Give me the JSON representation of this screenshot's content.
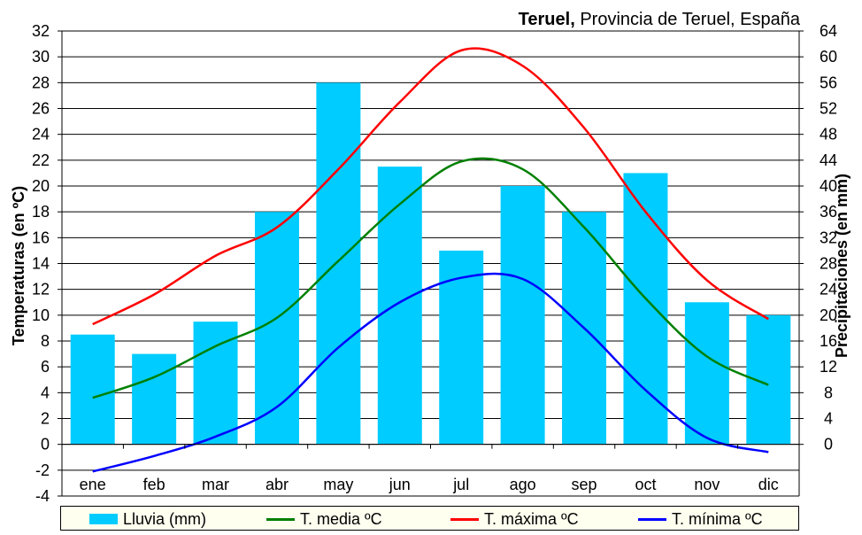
{
  "chart_data": {
    "type": "bar+line",
    "caption": {
      "place": "Teruel,",
      "rest": "Provincia de Teruel, España"
    },
    "categories": [
      "ene",
      "feb",
      "mar",
      "abr",
      "may",
      "jun",
      "jul",
      "ago",
      "sep",
      "oct",
      "nov",
      "dic"
    ],
    "ylabel_left": "Temperaturas (en ºC)",
    "ylabel_right": "Precipitaciones (en mm)",
    "ylim_left": [
      -4,
      32
    ],
    "ylim_right": [
      -8,
      64
    ],
    "yticks_left": [
      "32",
      "30",
      "28",
      "26",
      "24",
      "22",
      "20",
      "18",
      "16",
      "14",
      "12",
      "10",
      "8",
      "6",
      "4",
      "2",
      "0",
      "-2",
      "-4"
    ],
    "yticks_right": [
      "64",
      "60",
      "56",
      "52",
      "48",
      "44",
      "40",
      "36",
      "32",
      "28",
      "24",
      "20",
      "16",
      "12",
      "8",
      "4",
      "0"
    ],
    "grid": true,
    "legend_position": "bottom",
    "bars": {
      "name": "Lluvia (mm)",
      "color": "#00ccff",
      "values": [
        17,
        14,
        19,
        36,
        56,
        43,
        30,
        40,
        36,
        42,
        22,
        20
      ]
    },
    "series": [
      {
        "name": "T. media ºC",
        "color": "#008000",
        "values": [
          3.6,
          5.2,
          7.6,
          9.8,
          14.2,
          18.6,
          21.9,
          21.3,
          16.8,
          11.3,
          6.8,
          4.6
        ]
      },
      {
        "name": "T. máxima ºC",
        "color": "#ff0000",
        "values": [
          9.3,
          11.6,
          14.6,
          16.8,
          21.3,
          26.5,
          30.5,
          29.3,
          24.5,
          18.0,
          12.7,
          9.7
        ]
      },
      {
        "name": "T. mínima ºC",
        "color": "#0000ff",
        "values": [
          -2.1,
          -0.9,
          0.6,
          2.9,
          7.5,
          11.0,
          12.9,
          12.8,
          9.0,
          4.2,
          0.5,
          -0.6
        ]
      }
    ]
  }
}
